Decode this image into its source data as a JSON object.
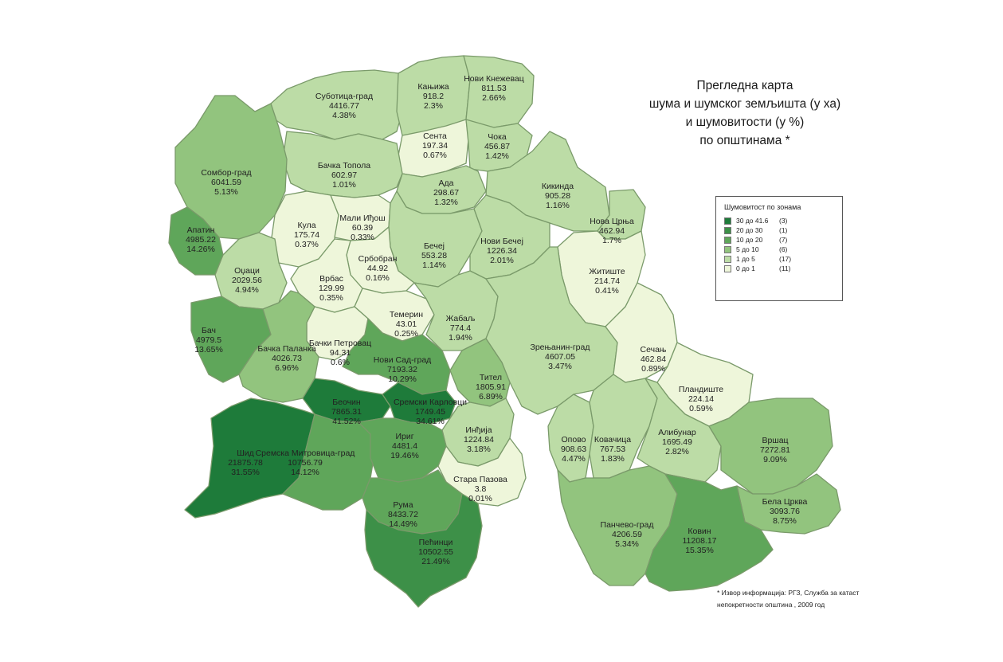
{
  "title": {
    "line1": "Прегледна карта",
    "line2": "шума и шумског земљишта (у ха)",
    "line3": "и шумовитости (у %)",
    "line4": "по општинама *"
  },
  "legend": {
    "title": "Шумовитост по зонама",
    "items": [
      {
        "range": "30 до 41.6",
        "count": "(3)",
        "color": "#1e7b3a"
      },
      {
        "range": "20 до 30",
        "count": "(1)",
        "color": "#3d9048"
      },
      {
        "range": "10 до 20",
        "count": "(7)",
        "color": "#5fa65a"
      },
      {
        "range": "5 до 10",
        "count": "(6)",
        "color": "#92c47e"
      },
      {
        "range": "1 до 5",
        "count": "(17)",
        "color": "#bcdca6"
      },
      {
        "range": "0 до 1",
        "count": "(11)",
        "color": "#eef6da"
      }
    ]
  },
  "footnote": {
    "line1": "* Извор информација: РГЗ, Служба за катаст",
    "line2": "непокретности општина , 2009 год"
  },
  "municipalities": [
    {
      "name": "Суботица-град",
      "area": "4416.77",
      "pct": "4.38%",
      "zone": 4
    },
    {
      "name": "Кањижа",
      "area": "918.2",
      "pct": "2.3%",
      "zone": 4
    },
    {
      "name": "Нови Кнежевац",
      "area": "811.53",
      "pct": "2.66%",
      "zone": 4
    },
    {
      "name": "Сента",
      "area": "197.34",
      "pct": "0.67%",
      "zone": 5
    },
    {
      "name": "Чока",
      "area": "456.87",
      "pct": "1.42%",
      "zone": 4
    },
    {
      "name": "Бачка Топола",
      "area": "602.97",
      "pct": "1.01%",
      "zone": 4
    },
    {
      "name": "Сомбор-град",
      "area": "6041.59",
      "pct": "5.13%",
      "zone": 3
    },
    {
      "name": "Ада",
      "area": "298.67",
      "pct": "1.32%",
      "zone": 4
    },
    {
      "name": "Кикинда",
      "area": "905.28",
      "pct": "1.16%",
      "zone": 4
    },
    {
      "name": "Кула",
      "area": "175.74",
      "pct": "0.37%",
      "zone": 5
    },
    {
      "name": "Мали Иђош",
      "area": "60.39",
      "pct": "0.33%",
      "zone": 5
    },
    {
      "name": "Нова Црња",
      "area": "462.94",
      "pct": "1.7%",
      "zone": 4
    },
    {
      "name": "Апатин",
      "area": "4985.22",
      "pct": "14.26%",
      "zone": 2
    },
    {
      "name": "Бечеј",
      "area": "553.28",
      "pct": "1.14%",
      "zone": 4
    },
    {
      "name": "Нови Бечеј",
      "area": "1226.34",
      "pct": "2.01%",
      "zone": 4
    },
    {
      "name": "Србобран",
      "area": "44.92",
      "pct": "0.16%",
      "zone": 5
    },
    {
      "name": "Оџаци",
      "area": "2029.56",
      "pct": "4.94%",
      "zone": 4
    },
    {
      "name": "Житиште",
      "area": "214.74",
      "pct": "0.41%",
      "zone": 5
    },
    {
      "name": "Врбас",
      "area": "129.99",
      "pct": "0.35%",
      "zone": 5
    },
    {
      "name": "Темерин",
      "area": "43.01",
      "pct": "0.25%",
      "zone": 5
    },
    {
      "name": "Бач",
      "area": "4979.5",
      "pct": "13.65%",
      "zone": 2
    },
    {
      "name": "Жабаљ",
      "area": "774.4",
      "pct": "1.94%",
      "zone": 4
    },
    {
      "name": "Бачки Петровац",
      "area": "94.31",
      "pct": "0.6%",
      "zone": 5
    },
    {
      "name": "Бачка Паланка",
      "area": "4026.73",
      "pct": "6.96%",
      "zone": 3
    },
    {
      "name": "Нови Сад-град",
      "area": "7193.32",
      "pct": "10.29%",
      "zone": 2
    },
    {
      "name": "Зрењанин-град",
      "area": "4607.05",
      "pct": "3.47%",
      "zone": 4
    },
    {
      "name": "Сечањ",
      "area": "462.84",
      "pct": "0.89%",
      "zone": 5
    },
    {
      "name": "Тител",
      "area": "1805.91",
      "pct": "6.89%",
      "zone": 3
    },
    {
      "name": "Пландиште",
      "area": "224.14",
      "pct": "0.59%",
      "zone": 5
    },
    {
      "name": "Беочин",
      "area": "7865.31",
      "pct": "41.52%",
      "zone": 0
    },
    {
      "name": "Сремски Карловци",
      "area": "1749.45",
      "pct": "34.61%",
      "zone": 0
    },
    {
      "name": "Инђија",
      "area": "1224.84",
      "pct": "3.18%",
      "zone": 4
    },
    {
      "name": "Опово",
      "area": "908.63",
      "pct": "4.47%",
      "zone": 4
    },
    {
      "name": "Ковачица",
      "area": "767.53",
      "pct": "1.83%",
      "zone": 4
    },
    {
      "name": "Алибунар",
      "area": "1695.49",
      "pct": "2.82%",
      "zone": 4
    },
    {
      "name": "Шид",
      "area": "21875.78",
      "pct": "31.55%",
      "zone": 0
    },
    {
      "name": "Сремска Митровица-град",
      "area": "10756.79",
      "pct": "14.12%",
      "zone": 2
    },
    {
      "name": "Ириг",
      "area": "4481.4",
      "pct": "19.46%",
      "zone": 2
    },
    {
      "name": "Вршац",
      "area": "7272.81",
      "pct": "9.09%",
      "zone": 3
    },
    {
      "name": "Стара Пазова",
      "area": "3.8",
      "pct": "0.01%",
      "zone": 5
    },
    {
      "name": "Бела Црква",
      "area": "3093.76",
      "pct": "8.75%",
      "zone": 3
    },
    {
      "name": "Рума",
      "area": "8433.72",
      "pct": "14.49%",
      "zone": 2
    },
    {
      "name": "Панчево-град",
      "area": "4206.59",
      "pct": "5.34%",
      "zone": 3
    },
    {
      "name": "Ковин",
      "area": "11208.17",
      "pct": "15.35%",
      "zone": 2
    },
    {
      "name": "Пећинци",
      "area": "10502.55",
      "pct": "21.49%",
      "zone": 1
    }
  ]
}
